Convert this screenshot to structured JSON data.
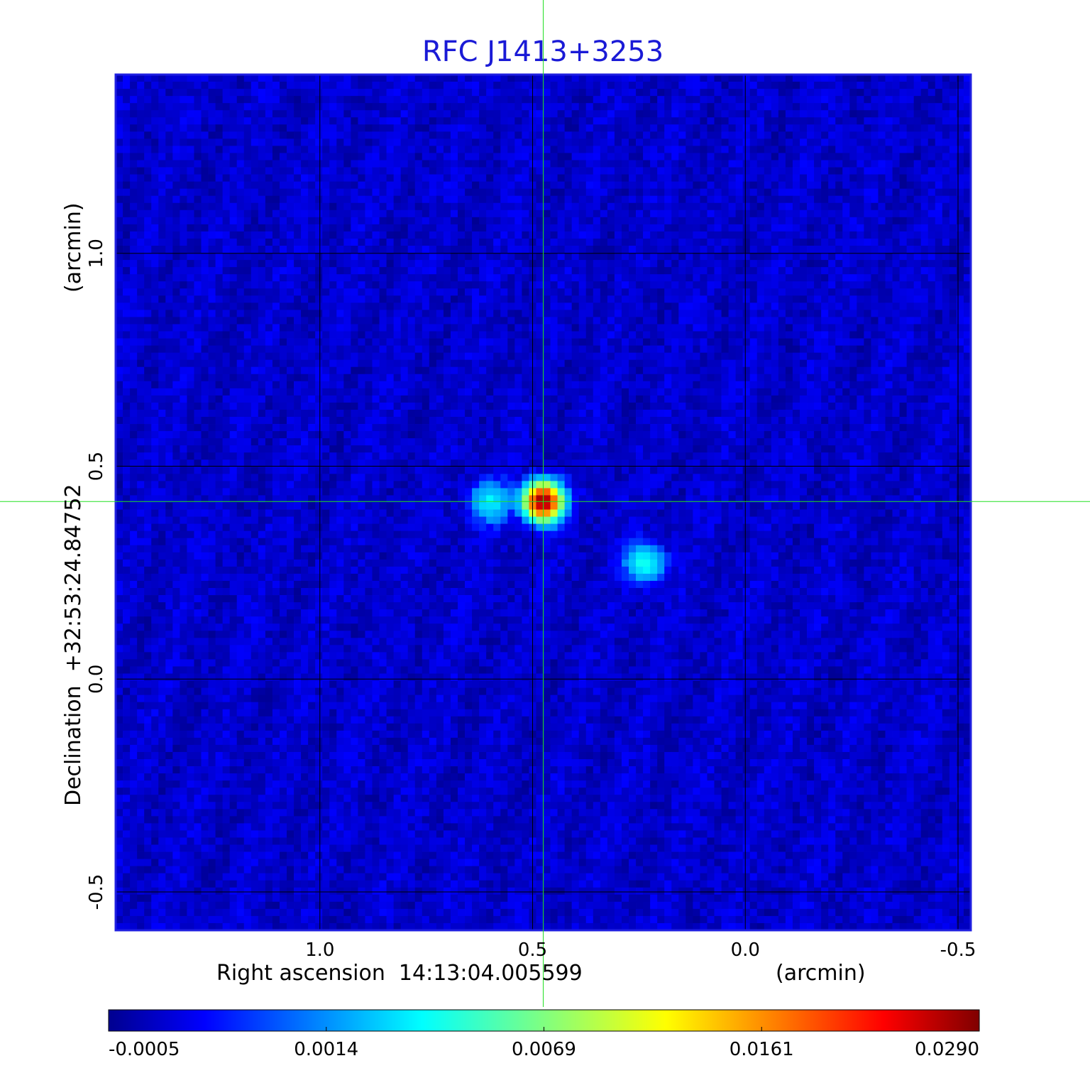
{
  "chart_data": {
    "type": "heatmap",
    "title": "RFC J1413+3253",
    "xlabel": "Right ascension  14:13:04.005599",
    "xunit": "(arcmin)",
    "ylabel": "Declination  +32:53:24.84752",
    "yunit": "(arcmin)",
    "x_ticks": [
      1.0,
      0.5,
      0.0,
      -0.5
    ],
    "x_tick_labels": [
      "1.0",
      "0.5",
      "0.0",
      "-0.5"
    ],
    "y_ticks": [
      1.0,
      0.5,
      0.0,
      -0.5
    ],
    "y_tick_labels": [
      "1.0",
      "0.5",
      "0.0",
      "-0.5"
    ],
    "xlim": [
      1.48,
      -0.53
    ],
    "ylim": [
      -0.59,
      1.42
    ],
    "grid": true,
    "crosshair": {
      "x": 0.475,
      "y": 0.417
    },
    "sources": [
      {
        "x": 0.475,
        "y": 0.417,
        "peak": 0.029,
        "sigma": 0.026
      },
      {
        "x": 0.6,
        "y": 0.417,
        "peak": 0.0035,
        "sigma": 0.03
      },
      {
        "x": 0.235,
        "y": 0.272,
        "peak": 0.0045,
        "sigma": 0.028
      }
    ],
    "colorbar": {
      "ticks": [
        -0.0005,
        0.0014,
        0.0069,
        0.0161,
        0.029
      ],
      "tick_labels": [
        "-0.0005",
        "0.0014",
        "0.0069",
        "0.0161",
        "0.0290"
      ],
      "colormap": "jet",
      "orientation": "horizontal",
      "placement": "bottom"
    },
    "colors": {
      "title": "#1a1ad6",
      "frame": "#1f1fe0",
      "grid": "#000000",
      "crosshair": "#22e022"
    }
  }
}
